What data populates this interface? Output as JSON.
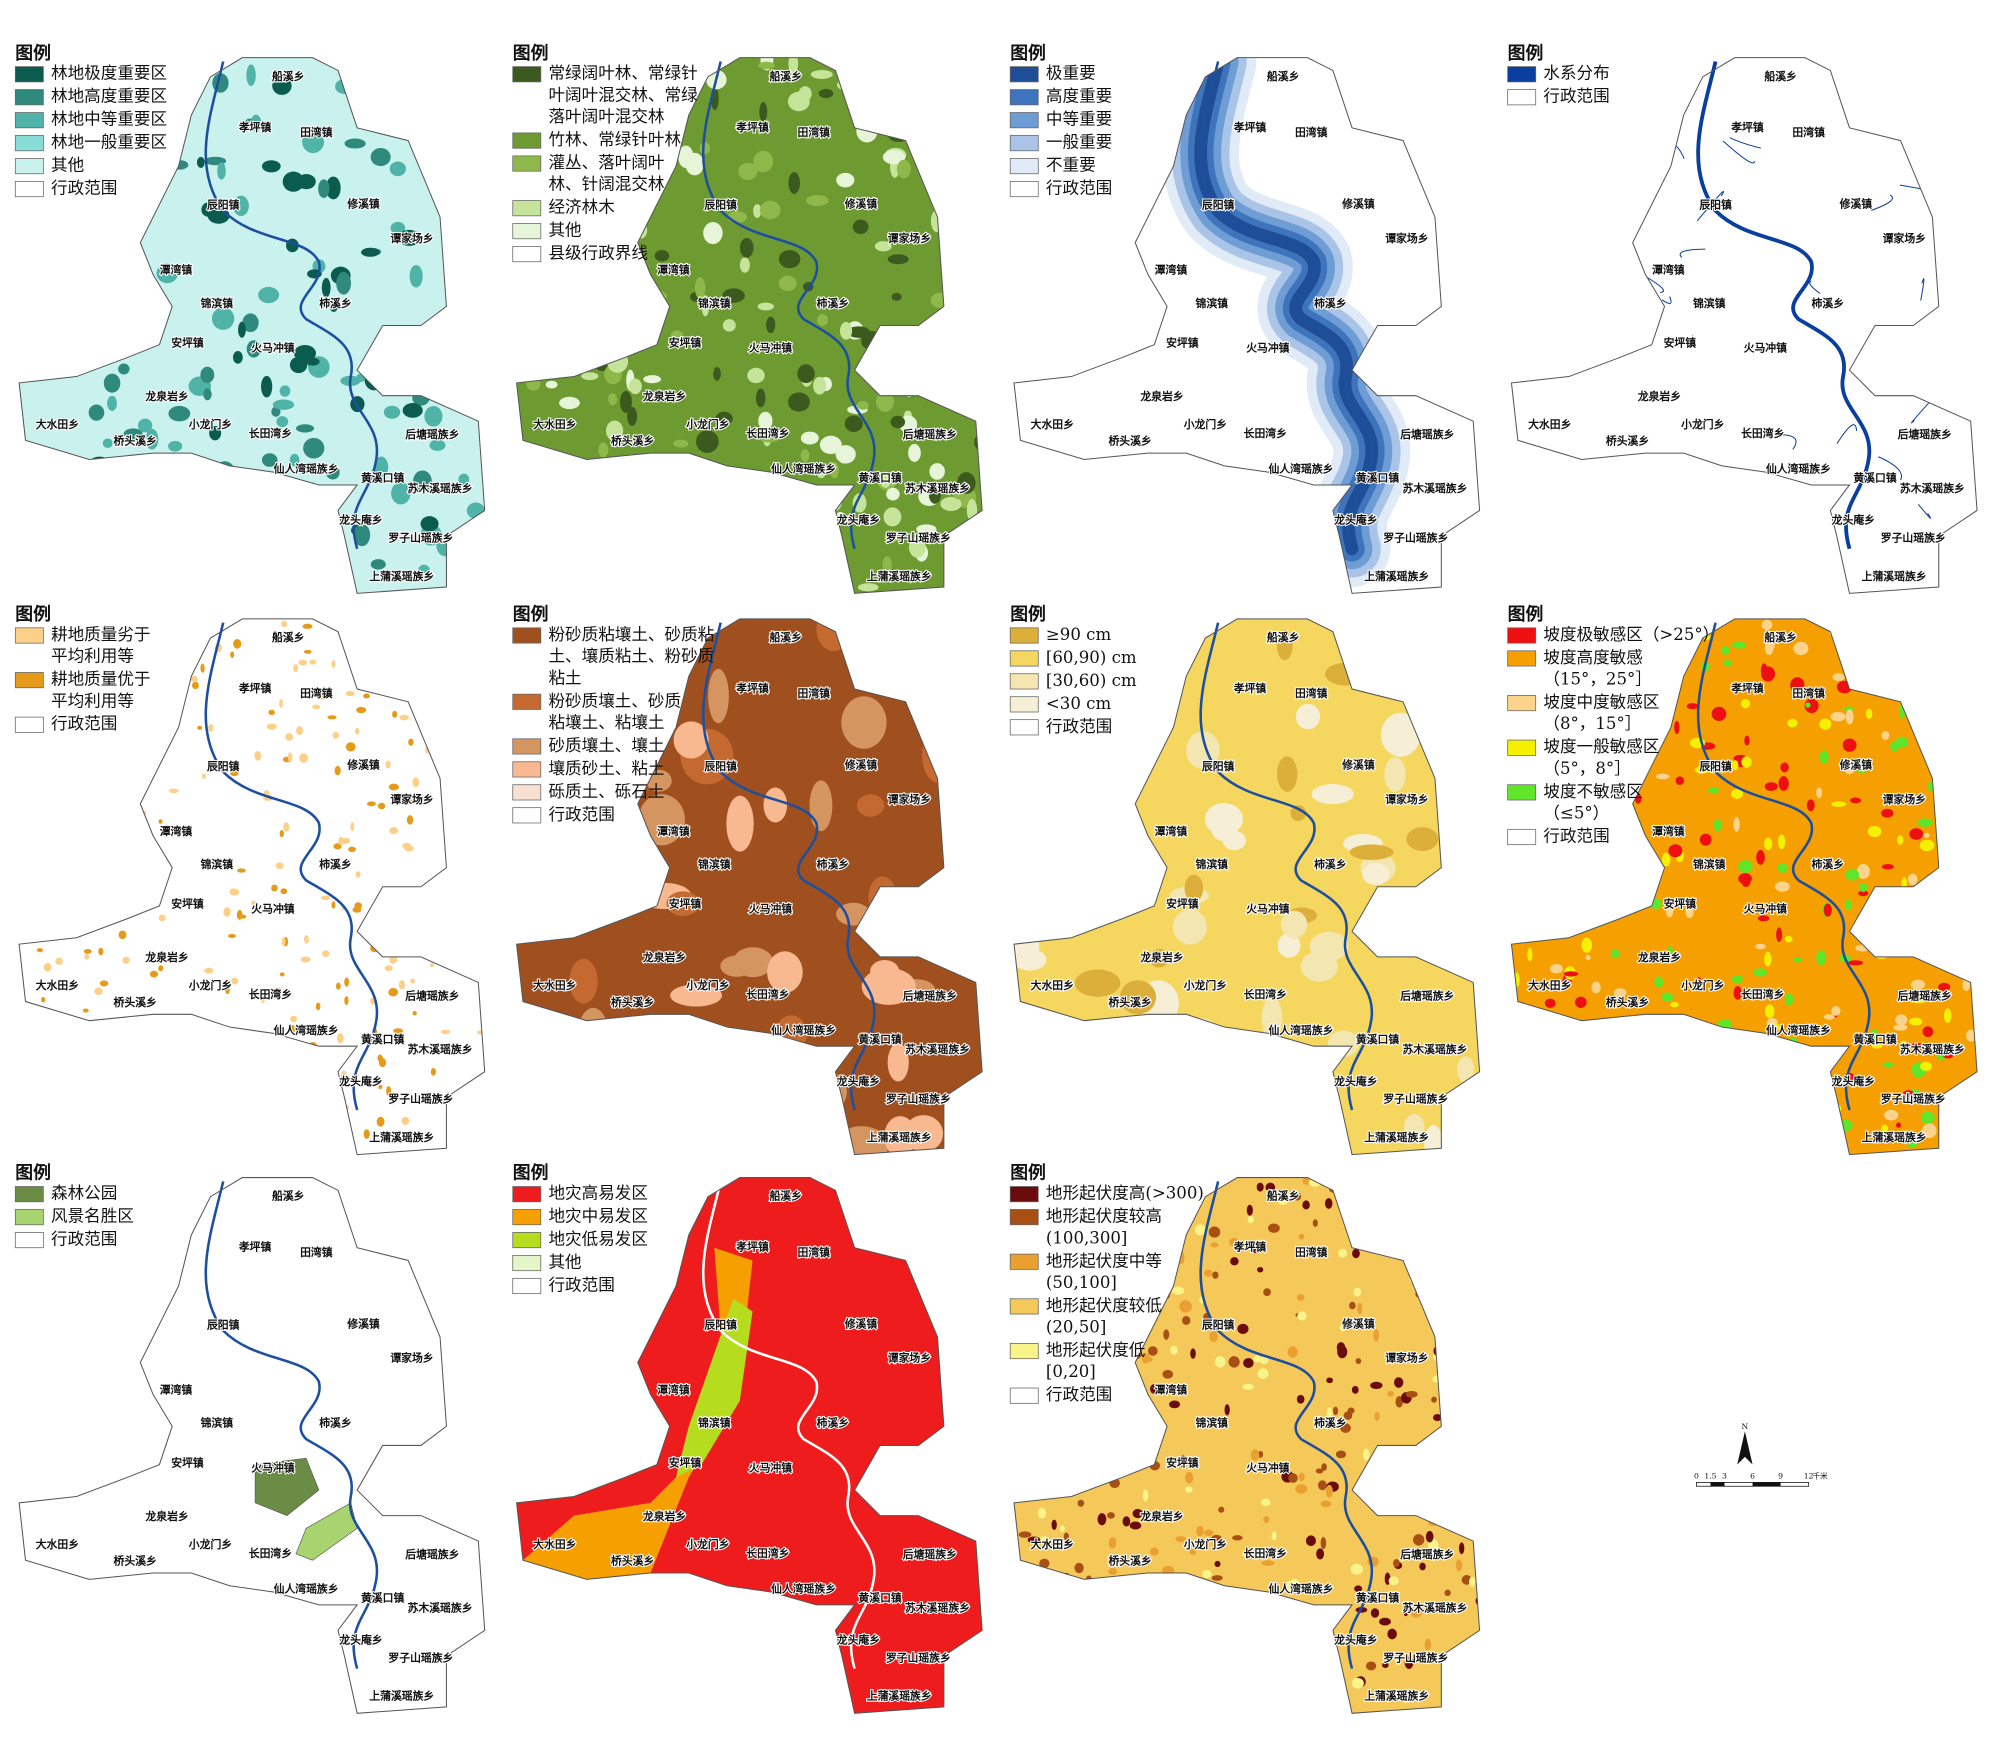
{
  "panels": [
    {
      "legend": {
        "title": "图例",
        "items": [
          {
            "label": [
              "林地极度重要区"
            ],
            "color": "#0b5c4f"
          },
          {
            "label": [
              "林地高度重要区"
            ],
            "color": "#2f8a7d"
          },
          {
            "label": [
              "林地中等重要区"
            ],
            "color": "#4fb3a8"
          },
          {
            "label": [
              "林地一般重要区"
            ],
            "color": "#88dcd6"
          },
          {
            "label": [
              "其他"
            ],
            "color": "#c9f2ef"
          },
          {
            "label": [
              "行政范围"
            ],
            "color": "#ffffff"
          }
        ]
      }
    },
    {
      "legend": {
        "title": "图例",
        "items": [
          {
            "label": [
              "常绿阔叶林、常绿针",
              "叶阔叶混交林、常绿",
              "落叶阔叶混交林"
            ],
            "color": "#3d5a1e"
          },
          {
            "label": [
              "竹林、常绿针叶林"
            ],
            "color": "#6e9a32"
          },
          {
            "label": [
              "灌丛、落叶阔叶",
              "林、针阔混交林"
            ],
            "color": "#8fb84a"
          },
          {
            "label": [
              "经济林木"
            ],
            "color": "#c5e49a"
          },
          {
            "label": [
              "其他"
            ],
            "color": "#e6f5d8"
          },
          {
            "label": [
              "县级行政界线"
            ],
            "color": "#ffffff"
          }
        ]
      }
    },
    {
      "legend": {
        "title": "图例",
        "items": [
          {
            "label": [
              "极重要"
            ],
            "color": "#1f4e96"
          },
          {
            "label": [
              "高度重要"
            ],
            "color": "#3d74bb"
          },
          {
            "label": [
              "中等重要"
            ],
            "color": "#6d9dd4"
          },
          {
            "label": [
              "一般重要"
            ],
            "color": "#a9c4e6"
          },
          {
            "label": [
              "不重要"
            ],
            "color": "#e0ebf7"
          },
          {
            "label": [
              "行政范围"
            ],
            "color": "#ffffff"
          }
        ]
      }
    },
    {
      "legend": {
        "title": "图例",
        "items": [
          {
            "label": [
              "水系分布"
            ],
            "color": "#0a3fa0"
          },
          {
            "label": [
              "行政范围"
            ],
            "color": "#ffffff"
          }
        ]
      }
    },
    {
      "legend": {
        "title": "图例",
        "items": [
          {
            "label": [
              "耕地质量劣于",
              "平均利用等"
            ],
            "color": "#fdd08a"
          },
          {
            "label": [
              "耕地质量优于",
              "平均利用等"
            ],
            "color": "#e69a1a"
          },
          {
            "label": [
              "行政范围"
            ],
            "color": "#ffffff"
          }
        ]
      }
    },
    {
      "legend": {
        "title": "图例",
        "items": [
          {
            "label": [
              "粉砂质粘壤土、砂质粘",
              "土、壤质粘土、粉砂质",
              "粘土"
            ],
            "color": "#a0501e"
          },
          {
            "label": [
              "粉砂质壤土、砂质",
              "粘壤土、粘壤土"
            ],
            "color": "#c46a30"
          },
          {
            "label": [
              "砂质壤土、壤土"
            ],
            "color": "#d49560"
          },
          {
            "label": [
              "壤质砂土、粘土"
            ],
            "color": "#f8b890"
          },
          {
            "label": [
              "砾质土、砾石土"
            ],
            "color": "#f7e0d0"
          },
          {
            "label": [
              "行政范围"
            ],
            "color": "#ffffff"
          }
        ]
      }
    },
    {
      "legend": {
        "title": "图例",
        "items": [
          {
            "label": [
              "≥90 cm"
            ],
            "color": "#dcae3a"
          },
          {
            "label": [
              "[60,90) cm"
            ],
            "color": "#f5d760"
          },
          {
            "label": [
              "[30,60) cm"
            ],
            "color": "#f3e6b0"
          },
          {
            "label": [
              "<30 cm"
            ],
            "color": "#f6efd5"
          },
          {
            "label": [
              "行政范围"
            ],
            "color": "#ffffff"
          }
        ]
      }
    },
    {
      "legend": {
        "title": "图例",
        "items": [
          {
            "label": [
              "坡度极敏感区（>25°）"
            ],
            "color": "#ee1010"
          },
          {
            "label": [
              "坡度高度敏感",
              "（15°，25°］"
            ],
            "color": "#f5a000"
          },
          {
            "label": [
              "坡度中度敏感区",
              "（8°，15°］"
            ],
            "color": "#fcd38a"
          },
          {
            "label": [
              "坡度一般敏感区",
              "（5°，8°］"
            ],
            "color": "#f5f000"
          },
          {
            "label": [
              "坡度不敏感区",
              "（≤5°）"
            ],
            "color": "#5fe62a"
          },
          {
            "label": [
              "行政范围"
            ],
            "color": "#ffffff"
          }
        ]
      }
    },
    {
      "legend": {
        "title": "图例",
        "items": [
          {
            "label": [
              "森林公园"
            ],
            "color": "#6b8c45"
          },
          {
            "label": [
              "风景名胜区"
            ],
            "color": "#a8d470"
          },
          {
            "label": [
              "行政范围"
            ],
            "color": "#ffffff"
          }
        ]
      }
    },
    {
      "legend": {
        "title": "图例",
        "items": [
          {
            "label": [
              "地灾高易发区"
            ],
            "color": "#ee1c1c"
          },
          {
            "label": [
              "地灾中易发区"
            ],
            "color": "#f5a000"
          },
          {
            "label": [
              "地灾低易发区"
            ],
            "color": "#b5dd1e"
          },
          {
            "label": [
              "其他"
            ],
            "color": "#e4f5c8"
          },
          {
            "label": [
              "行政范围"
            ],
            "color": "#ffffff"
          }
        ]
      }
    },
    {
      "legend": {
        "title": "图例",
        "items": [
          {
            "label": [
              "地形起伏度高(>300)"
            ],
            "color": "#6b0c0c"
          },
          {
            "label": [
              "地形起伏度较高",
              "(100,300]"
            ],
            "color": "#a84f14"
          },
          {
            "label": [
              "地形起伏度中等",
              "(50,100]"
            ],
            "color": "#eaa030"
          },
          {
            "label": [
              "地形起伏度较低",
              "(20,50]"
            ],
            "color": "#f5c85a"
          },
          {
            "label": [
              "地形起伏度低",
              "[0,20]"
            ],
            "color": "#f8f48a"
          },
          {
            "label": [
              "行政范围"
            ],
            "color": "#ffffff"
          }
        ]
      }
    }
  ],
  "towns": [
    "船溪乡",
    "孝坪镇",
    "田湾镇",
    "辰阳镇",
    "修溪镇",
    "谭家场乡",
    "潭湾镇",
    "锦滨镇",
    "柿溪乡",
    "安坪镇",
    "火马冲镇",
    "龙泉岩乡",
    "大水田乡",
    "小龙门乡",
    "桥头溪乡",
    "长田湾乡",
    "后塘瑶族乡",
    "仙人湾瑶族乡",
    "黄溪口镇",
    "苏木溪瑶族乡",
    "龙头庵乡",
    "罗子山瑶族乡",
    "上蒲溪瑶族乡"
  ],
  "scale_bar": {
    "north": "N",
    "ticks": [
      "0",
      "1.5",
      "3",
      "6",
      "9",
      "12"
    ],
    "unit": "千米"
  }
}
